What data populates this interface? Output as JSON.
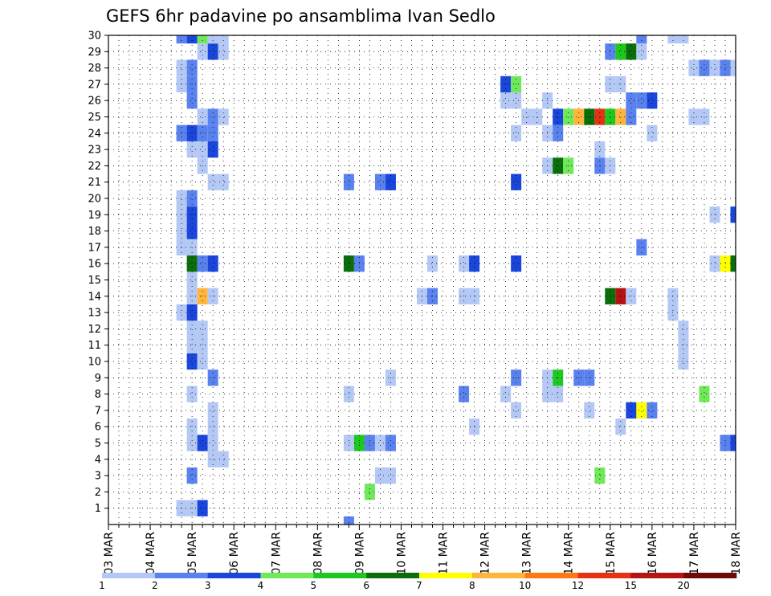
{
  "chart_data": {
    "type": "heatmap",
    "title": "GEFS 6hr padavine po ansamblima Ivan Sedlo",
    "xlabel": "",
    "ylabel": "",
    "x_ticks": [
      "03 MAR",
      "04 MAR",
      "05 MAR",
      "06 MAR",
      "07 MAR",
      "08 MAR",
      "09 MAR",
      "10 MAR",
      "11 MAR",
      "12 MAR",
      "13 MAR",
      "14 MAR",
      "15 MAR",
      "16 MAR",
      "17 MAR",
      "18 MAR"
    ],
    "x_range_steps": [
      0,
      60
    ],
    "steps_per_day": 4,
    "y_ticks": [
      1,
      2,
      3,
      4,
      5,
      6,
      7,
      8,
      9,
      10,
      11,
      12,
      13,
      14,
      15,
      16,
      17,
      18,
      19,
      20,
      21,
      22,
      23,
      24,
      25,
      26,
      27,
      28,
      29,
      30
    ],
    "y_range": [
      0,
      30
    ],
    "grid": true,
    "legend": {
      "position": "bottom",
      "labels": [
        "1",
        "2",
        "3",
        "4",
        "5",
        "6",
        "7",
        "8",
        "10",
        "12",
        "15",
        "20"
      ],
      "colors": [
        "#b4c8f5",
        "#5a82ee",
        "#1a46dc",
        "#6fe85a",
        "#1ec81e",
        "#0a6e0a",
        "#ffff00",
        "#ffb43c",
        "#ff7814",
        "#e63214",
        "#b41414",
        "#6e0a0a"
      ]
    },
    "colors": {
      "c1": "#b4c8f5",
      "c2": "#5a82ee",
      "c3": "#1a46dc",
      "c4": "#6fe85a",
      "c5": "#1ec81e",
      "c6": "#0a6e0a",
      "c7": "#ffff00",
      "c8": "#ffb43c",
      "c10": "#ff7814",
      "c12": "#e63214",
      "c15": "#b41414",
      "c20": "#6e0a0a"
    },
    "cells": [
      {
        "m": 1,
        "s": 7,
        "v": 1
      },
      {
        "m": 1,
        "s": 8,
        "v": 1
      },
      {
        "m": 1,
        "s": 9,
        "v": 3
      },
      {
        "m": 2,
        "s": 25,
        "v": 4
      },
      {
        "m": 3,
        "s": 8,
        "v": 2
      },
      {
        "m": 3,
        "s": 26,
        "v": 1
      },
      {
        "m": 3,
        "s": 27,
        "v": 1
      },
      {
        "m": 3,
        "s": 47,
        "v": 4
      },
      {
        "m": 4,
        "s": 10,
        "v": 1
      },
      {
        "m": 4,
        "s": 11,
        "v": 1
      },
      {
        "m": 5,
        "s": 8,
        "v": 1
      },
      {
        "m": 5,
        "s": 9,
        "v": 3
      },
      {
        "m": 5,
        "s": 10,
        "v": 1
      },
      {
        "m": 5,
        "s": 23,
        "v": 1
      },
      {
        "m": 5,
        "s": 24,
        "v": 5
      },
      {
        "m": 5,
        "s": 25,
        "v": 2
      },
      {
        "m": 5,
        "s": 26,
        "v": 1
      },
      {
        "m": 5,
        "s": 27,
        "v": 2
      },
      {
        "m": 5,
        "s": 59,
        "v": 2
      },
      {
        "m": 5,
        "s": 60,
        "v": 3
      },
      {
        "m": 6,
        "s": 8,
        "v": 1
      },
      {
        "m": 6,
        "s": 10,
        "v": 1
      },
      {
        "m": 6,
        "s": 35,
        "v": 1
      },
      {
        "m": 6,
        "s": 49,
        "v": 1
      },
      {
        "m": 7,
        "s": 10,
        "v": 1
      },
      {
        "m": 7,
        "s": 39,
        "v": 1
      },
      {
        "m": 7,
        "s": 46,
        "v": 1
      },
      {
        "m": 7,
        "s": 50,
        "v": 3
      },
      {
        "m": 7,
        "s": 51,
        "v": 7
      },
      {
        "m": 7,
        "s": 52,
        "v": 2
      },
      {
        "m": 8,
        "s": 8,
        "v": 1
      },
      {
        "m": 8,
        "s": 23,
        "v": 1
      },
      {
        "m": 8,
        "s": 34,
        "v": 2
      },
      {
        "m": 8,
        "s": 38,
        "v": 1
      },
      {
        "m": 8,
        "s": 42,
        "v": 1
      },
      {
        "m": 8,
        "s": 43,
        "v": 1
      },
      {
        "m": 8,
        "s": 57,
        "v": 4
      },
      {
        "m": 9,
        "s": 10,
        "v": 2
      },
      {
        "m": 9,
        "s": 27,
        "v": 1
      },
      {
        "m": 9,
        "s": 39,
        "v": 2
      },
      {
        "m": 9,
        "s": 42,
        "v": 1
      },
      {
        "m": 9,
        "s": 43,
        "v": 5
      },
      {
        "m": 9,
        "s": 45,
        "v": 2
      },
      {
        "m": 9,
        "s": 46,
        "v": 2
      },
      {
        "m": 10,
        "s": 8,
        "v": 3
      },
      {
        "m": 10,
        "s": 9,
        "v": 1
      },
      {
        "m": 10,
        "s": 55,
        "v": 1
      },
      {
        "m": 11,
        "s": 8,
        "v": 1
      },
      {
        "m": 11,
        "s": 9,
        "v": 1
      },
      {
        "m": 11,
        "s": 55,
        "v": 1
      },
      {
        "m": 12,
        "s": 8,
        "v": 1
      },
      {
        "m": 12,
        "s": 9,
        "v": 1
      },
      {
        "m": 12,
        "s": 55,
        "v": 1
      },
      {
        "m": 13,
        "s": 7,
        "v": 1
      },
      {
        "m": 13,
        "s": 8,
        "v": 3
      },
      {
        "m": 13,
        "s": 54,
        "v": 1
      },
      {
        "m": 14,
        "s": 8,
        "v": 1
      },
      {
        "m": 14,
        "s": 9,
        "v": 8
      },
      {
        "m": 14,
        "s": 10,
        "v": 1
      },
      {
        "m": 14,
        "s": 30,
        "v": 1
      },
      {
        "m": 14,
        "s": 31,
        "v": 2
      },
      {
        "m": 14,
        "s": 34,
        "v": 1
      },
      {
        "m": 14,
        "s": 35,
        "v": 1
      },
      {
        "m": 14,
        "s": 48,
        "v": 6
      },
      {
        "m": 14,
        "s": 49,
        "v": 15
      },
      {
        "m": 14,
        "s": 50,
        "v": 1
      },
      {
        "m": 14,
        "s": 54,
        "v": 1
      },
      {
        "m": 15,
        "s": 8,
        "v": 1
      },
      {
        "m": 16,
        "s": 8,
        "v": 6
      },
      {
        "m": 16,
        "s": 9,
        "v": 2
      },
      {
        "m": 16,
        "s": 10,
        "v": 3
      },
      {
        "m": 16,
        "s": 23,
        "v": 6
      },
      {
        "m": 16,
        "s": 24,
        "v": 2
      },
      {
        "m": 16,
        "s": 31,
        "v": 1
      },
      {
        "m": 16,
        "s": 34,
        "v": 1
      },
      {
        "m": 16,
        "s": 35,
        "v": 3
      },
      {
        "m": 16,
        "s": 39,
        "v": 3
      },
      {
        "m": 16,
        "s": 58,
        "v": 1
      },
      {
        "m": 16,
        "s": 59,
        "v": 7
      },
      {
        "m": 16,
        "s": 60,
        "v": 6
      },
      {
        "m": 17,
        "s": 7,
        "v": 1
      },
      {
        "m": 17,
        "s": 8,
        "v": 1
      },
      {
        "m": 17,
        "s": 51,
        "v": 2
      },
      {
        "m": 18,
        "s": 7,
        "v": 1
      },
      {
        "m": 18,
        "s": 8,
        "v": 3
      },
      {
        "m": 19,
        "s": 7,
        "v": 1
      },
      {
        "m": 19,
        "s": 8,
        "v": 3
      },
      {
        "m": 19,
        "s": 58,
        "v": 1
      },
      {
        "m": 19,
        "s": 60,
        "v": 3
      },
      {
        "m": 20,
        "s": 7,
        "v": 1
      },
      {
        "m": 20,
        "s": 8,
        "v": 2
      },
      {
        "m": 21,
        "s": 10,
        "v": 1
      },
      {
        "m": 21,
        "s": 11,
        "v": 1
      },
      {
        "m": 21,
        "s": 23,
        "v": 2
      },
      {
        "m": 21,
        "s": 26,
        "v": 2
      },
      {
        "m": 21,
        "s": 27,
        "v": 3
      },
      {
        "m": 21,
        "s": 39,
        "v": 3
      },
      {
        "m": 22,
        "s": 9,
        "v": 1
      },
      {
        "m": 22,
        "s": 42,
        "v": 1
      },
      {
        "m": 22,
        "s": 43,
        "v": 6
      },
      {
        "m": 22,
        "s": 44,
        "v": 4
      },
      {
        "m": 22,
        "s": 47,
        "v": 2
      },
      {
        "m": 22,
        "s": 48,
        "v": 1
      },
      {
        "m": 23,
        "s": 8,
        "v": 1
      },
      {
        "m": 23,
        "s": 9,
        "v": 1
      },
      {
        "m": 23,
        "s": 10,
        "v": 3
      },
      {
        "m": 23,
        "s": 47,
        "v": 1
      },
      {
        "m": 24,
        "s": 7,
        "v": 2
      },
      {
        "m": 24,
        "s": 8,
        "v": 3
      },
      {
        "m": 24,
        "s": 9,
        "v": 2
      },
      {
        "m": 24,
        "s": 10,
        "v": 2
      },
      {
        "m": 24,
        "s": 39,
        "v": 1
      },
      {
        "m": 24,
        "s": 42,
        "v": 1
      },
      {
        "m": 24,
        "s": 43,
        "v": 2
      },
      {
        "m": 24,
        "s": 52,
        "v": 1
      },
      {
        "m": 25,
        "s": 9,
        "v": 1
      },
      {
        "m": 25,
        "s": 10,
        "v": 2
      },
      {
        "m": 25,
        "s": 11,
        "v": 1
      },
      {
        "m": 25,
        "s": 40,
        "v": 1
      },
      {
        "m": 25,
        "s": 41,
        "v": 1
      },
      {
        "m": 25,
        "s": 43,
        "v": 3
      },
      {
        "m": 25,
        "s": 44,
        "v": 4
      },
      {
        "m": 25,
        "s": 45,
        "v": 8
      },
      {
        "m": 25,
        "s": 46,
        "v": 6
      },
      {
        "m": 25,
        "s": 47,
        "v": 12
      },
      {
        "m": 25,
        "s": 48,
        "v": 5
      },
      {
        "m": 25,
        "s": 49,
        "v": 8
      },
      {
        "m": 25,
        "s": 50,
        "v": 2
      },
      {
        "m": 25,
        "s": 56,
        "v": 1
      },
      {
        "m": 25,
        "s": 57,
        "v": 1
      },
      {
        "m": 26,
        "s": 8,
        "v": 2
      },
      {
        "m": 26,
        "s": 38,
        "v": 1
      },
      {
        "m": 26,
        "s": 39,
        "v": 1
      },
      {
        "m": 26,
        "s": 42,
        "v": 1
      },
      {
        "m": 26,
        "s": 50,
        "v": 2
      },
      {
        "m": 26,
        "s": 51,
        "v": 2
      },
      {
        "m": 26,
        "s": 52,
        "v": 3
      },
      {
        "m": 27,
        "s": 7,
        "v": 1
      },
      {
        "m": 27,
        "s": 8,
        "v": 2
      },
      {
        "m": 27,
        "s": 38,
        "v": 3
      },
      {
        "m": 27,
        "s": 39,
        "v": 4
      },
      {
        "m": 27,
        "s": 48,
        "v": 1
      },
      {
        "m": 27,
        "s": 49,
        "v": 1
      },
      {
        "m": 28,
        "s": 7,
        "v": 1
      },
      {
        "m": 28,
        "s": 8,
        "v": 2
      },
      {
        "m": 28,
        "s": 56,
        "v": 1
      },
      {
        "m": 28,
        "s": 57,
        "v": 2
      },
      {
        "m": 28,
        "s": 58,
        "v": 1
      },
      {
        "m": 28,
        "s": 59,
        "v": 2
      },
      {
        "m": 28,
        "s": 60,
        "v": 1
      },
      {
        "m": 29,
        "s": 9,
        "v": 1
      },
      {
        "m": 29,
        "s": 10,
        "v": 3
      },
      {
        "m": 29,
        "s": 11,
        "v": 1
      },
      {
        "m": 29,
        "s": 48,
        "v": 2
      },
      {
        "m": 29,
        "s": 49,
        "v": 5
      },
      {
        "m": 29,
        "s": 50,
        "v": 6
      },
      {
        "m": 29,
        "s": 51,
        "v": 1
      },
      {
        "m": 30,
        "s": 7,
        "v": 2
      },
      {
        "m": 30,
        "s": 8,
        "v": 3
      },
      {
        "m": 30,
        "s": 9,
        "v": 4
      },
      {
        "m": 30,
        "s": 10,
        "v": 1
      },
      {
        "m": 30,
        "s": 11,
        "v": 1
      },
      {
        "m": 30,
        "s": 51,
        "v": 2
      },
      {
        "m": 30,
        "s": 54,
        "v": 1
      },
      {
        "m": 30,
        "s": 55,
        "v": 1
      },
      {
        "m": 31,
        "s": 8,
        "v": 5
      },
      {
        "m": 31,
        "s": 9,
        "v": 2
      },
      {
        "m": 31,
        "s": 23,
        "v": 3
      },
      {
        "m": 31,
        "s": 31,
        "v": 1
      },
      {
        "m": 31,
        "s": 35,
        "v": 1
      },
      {
        "m": 31,
        "s": 39,
        "v": 1
      },
      {
        "m": 31,
        "s": 60,
        "v": 2
      },
      {
        "m": 0,
        "s": 23,
        "v": 2
      }
    ]
  }
}
